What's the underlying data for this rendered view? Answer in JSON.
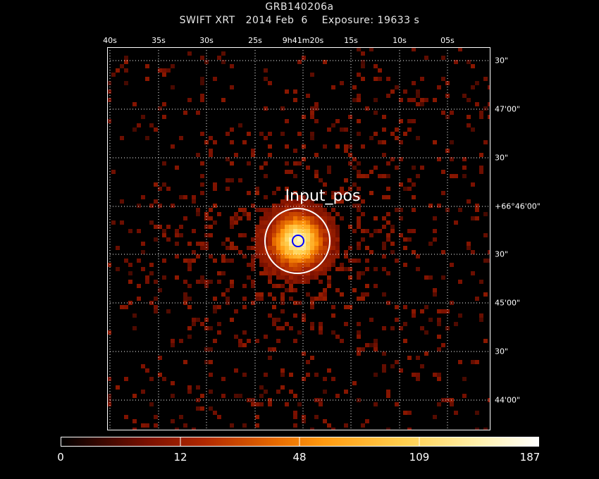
{
  "header": {
    "object": "GRB140206a",
    "instrument": "SWIFT XRT",
    "date": "2014 Feb  6",
    "exposure": "Exposure: 19633 s"
  },
  "ra_ticks": [
    "40s",
    "35s",
    "30s",
    "25s",
    "9h41m20s",
    "15s",
    "10s",
    "05s"
  ],
  "dec_ticks": [
    "30\"",
    "47'00\"",
    "30\"",
    "+66°46'00\"",
    "30\"",
    "45'00\"",
    "30\"",
    "44'00\""
  ],
  "region_label": "Input_pos",
  "colorbar": {
    "labels": [
      "0",
      "12",
      "48",
      "109",
      "187"
    ],
    "min": 0,
    "max": 187
  },
  "colors": {
    "background": "#000000",
    "frame": "#ffffff",
    "region_outer": "#ffffff",
    "region_inner": "#0000ff"
  }
}
